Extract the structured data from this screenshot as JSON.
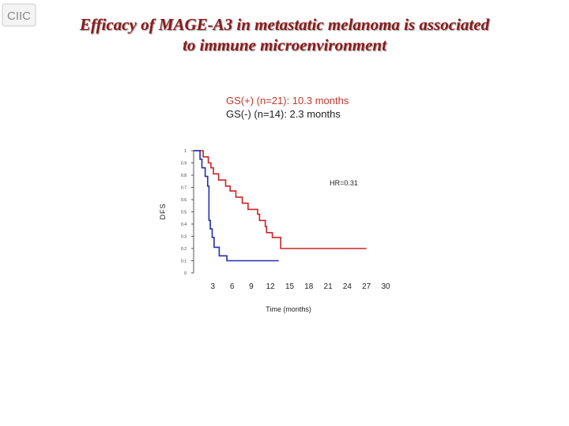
{
  "logo": {
    "text": "CIIC"
  },
  "title": {
    "line1": "Efficacy of MAGE-A3 in metastatic melanoma is associated",
    "line2": "to immune microenvironment"
  },
  "legend": {
    "gs_pos": "GS(+) (n=21): 10.3 months",
    "gs_neg": "GS(-) (n=14): 2.3 months"
  },
  "colors": {
    "title": "#8b1a1a",
    "gs_pos": "#cc2222",
    "gs_neg": "#1f2fb0",
    "axis": "#555555"
  },
  "chart_data": {
    "type": "line",
    "step": true,
    "ylabel": "DFS",
    "xlabel": "Time (months)",
    "xlim": [
      0,
      30
    ],
    "ylim": [
      0,
      1
    ],
    "xticks": [
      3,
      6,
      9,
      12,
      15,
      18,
      21,
      24,
      27,
      30
    ],
    "yticks": [
      0,
      0.1,
      0.2,
      0.3,
      0.4,
      0.5,
      0.6,
      0.7,
      0.8,
      0.9,
      1
    ],
    "ytick_labels": [
      "0",
      "0.1",
      "0.2",
      "0.3",
      "0.4",
      "0.5",
      "0.6",
      "0.7",
      "0.8",
      "0.9",
      "1"
    ],
    "annotation": "HR=0.31",
    "series": [
      {
        "color": "#cc2222",
        "points": [
          [
            0,
            1
          ],
          [
            1.5,
            1
          ],
          [
            1.5,
            0.95
          ],
          [
            2.3,
            0.95
          ],
          [
            2.3,
            0.9
          ],
          [
            2.7,
            0.9
          ],
          [
            2.7,
            0.86
          ],
          [
            3.1,
            0.86
          ],
          [
            3.1,
            0.81
          ],
          [
            3.9,
            0.81
          ],
          [
            3.9,
            0.76
          ],
          [
            5.0,
            0.76
          ],
          [
            5.0,
            0.71
          ],
          [
            5.7,
            0.71
          ],
          [
            5.7,
            0.67
          ],
          [
            6.6,
            0.67
          ],
          [
            6.6,
            0.62
          ],
          [
            7.6,
            0.62
          ],
          [
            7.6,
            0.57
          ],
          [
            8.5,
            0.57
          ],
          [
            8.5,
            0.52
          ],
          [
            10.0,
            0.52
          ],
          [
            10.0,
            0.48
          ],
          [
            10.3,
            0.48
          ],
          [
            10.3,
            0.43
          ],
          [
            11.2,
            0.43
          ],
          [
            11.2,
            0.38
          ],
          [
            11.4,
            0.38
          ],
          [
            11.4,
            0.33
          ],
          [
            12.3,
            0.33
          ],
          [
            12.3,
            0.29
          ],
          [
            13.6,
            0.29
          ],
          [
            13.6,
            0.2
          ],
          [
            27.0,
            0.2
          ]
        ]
      },
      {
        "color": "#1f2fb0",
        "points": [
          [
            0,
            1
          ],
          [
            1.0,
            1
          ],
          [
            1.0,
            0.93
          ],
          [
            1.3,
            0.93
          ],
          [
            1.3,
            0.86
          ],
          [
            1.8,
            0.86
          ],
          [
            1.8,
            0.79
          ],
          [
            2.2,
            0.79
          ],
          [
            2.2,
            0.71
          ],
          [
            2.4,
            0.71
          ],
          [
            2.4,
            0.43
          ],
          [
            2.6,
            0.43
          ],
          [
            2.6,
            0.36
          ],
          [
            2.9,
            0.36
          ],
          [
            2.9,
            0.29
          ],
          [
            3.2,
            0.29
          ],
          [
            3.2,
            0.21
          ],
          [
            4.0,
            0.21
          ],
          [
            4.0,
            0.14
          ],
          [
            5.2,
            0.14
          ],
          [
            5.2,
            0.1
          ],
          [
            9.0,
            0.1
          ],
          [
            9.0,
            0.1
          ],
          [
            13.3,
            0.1
          ]
        ]
      }
    ]
  }
}
